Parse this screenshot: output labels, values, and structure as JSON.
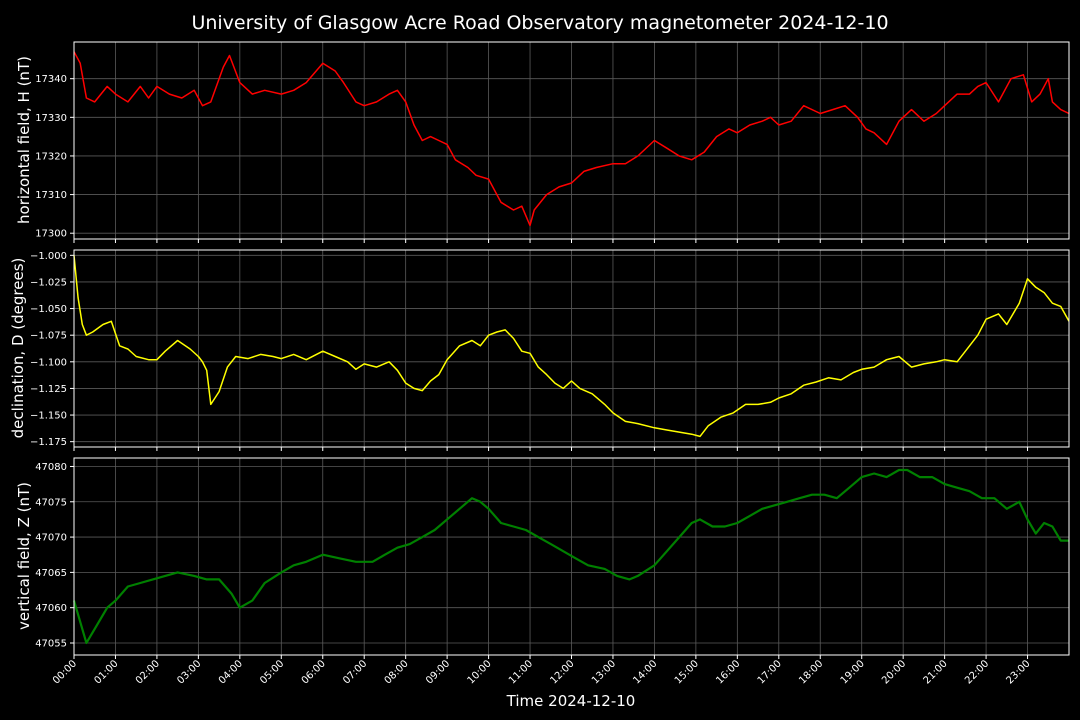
{
  "chart_data": {
    "type": "line",
    "title": "University of Glasgow Acre Road Observatory magnetometer 2024-12-10",
    "xlabel": "Time 2024-12-10",
    "x_unit": "hours",
    "xlim": [
      0,
      24
    ],
    "x_ticks": [
      "00:00",
      "01:00",
      "02:00",
      "03:00",
      "04:00",
      "05:00",
      "06:00",
      "07:00",
      "08:00",
      "09:00",
      "10:00",
      "11:00",
      "12:00",
      "13:00",
      "14:00",
      "15:00",
      "16:00",
      "17:00",
      "18:00",
      "19:00",
      "20:00",
      "21:00",
      "22:00",
      "23:00"
    ],
    "grid": true,
    "background": "#000000",
    "panels": [
      {
        "name": "H",
        "ylabel": "horizontal field, H (nT)",
        "color": "#ff0000",
        "ylim": [
          17298.5,
          17349.5
        ],
        "y_ticks": [
          17300,
          17310,
          17320,
          17330,
          17340
        ],
        "y_tick_labels": [
          "17300",
          "17310",
          "17320",
          "17330",
          "17340"
        ],
        "x": [
          0,
          0.15,
          0.3,
          0.5,
          0.8,
          1,
          1.3,
          1.6,
          1.8,
          2,
          2.3,
          2.6,
          2.9,
          3.1,
          3.3,
          3.6,
          3.75,
          4,
          4.3,
          4.6,
          5,
          5.3,
          5.6,
          6,
          6.3,
          6.5,
          6.8,
          7,
          7.3,
          7.6,
          7.8,
          8,
          8.2,
          8.4,
          8.6,
          8.8,
          9,
          9.2,
          9.5,
          9.7,
          10,
          10.3,
          10.6,
          10.8,
          11,
          11.1,
          11.4,
          11.7,
          12,
          12.3,
          12.6,
          13,
          13.3,
          13.6,
          14,
          14.3,
          14.6,
          14.9,
          15.2,
          15.5,
          15.8,
          16,
          16.3,
          16.6,
          16.8,
          17,
          17.3,
          17.6,
          18,
          18.3,
          18.6,
          18.9,
          19.1,
          19.3,
          19.6,
          19.9,
          20.2,
          20.5,
          20.8,
          21,
          21.3,
          21.6,
          21.8,
          22,
          22.3,
          22.6,
          22.9,
          23.1,
          23.3,
          23.5,
          23.6,
          23.8,
          24
        ],
        "values": [
          17347,
          17344,
          17335,
          17334,
          17338,
          17336,
          17334,
          17338,
          17335,
          17338,
          17336,
          17335,
          17337,
          17333,
          17334,
          17343,
          17346,
          17339,
          17336,
          17337,
          17336,
          17337,
          17339,
          17344,
          17342,
          17339,
          17334,
          17333,
          17334,
          17336,
          17337,
          17334,
          17328,
          17324,
          17325,
          17324,
          17323,
          17319,
          17317,
          17315,
          17314,
          17308,
          17306,
          17307,
          17302,
          17306,
          17310,
          17312,
          17313,
          17316,
          17317,
          17318,
          17318,
          17320,
          17324,
          17322,
          17320,
          17319,
          17321,
          17325,
          17327,
          17326,
          17328,
          17329,
          17330,
          17328,
          17329,
          17333,
          17331,
          17332,
          17333,
          17330,
          17327,
          17326,
          17323,
          17329,
          17332,
          17329,
          17331,
          17333,
          17336,
          17336,
          17338,
          17339,
          17334,
          17340,
          17341,
          17334,
          17336,
          17340,
          17334,
          17332,
          17331
        ]
      },
      {
        "name": "D",
        "ylabel": "declination, D (degrees)",
        "color": "#ffff00",
        "ylim": [
          -1.18,
          -0.995
        ],
        "y_ticks": [
          -1.175,
          -1.15,
          -1.125,
          -1.1,
          -1.075,
          -1.05,
          -1.025,
          -1.0
        ],
        "y_tick_labels": [
          "−1.175",
          "−1.150",
          "−1.125",
          "−1.100",
          "−1.075",
          "−1.050",
          "−1.025",
          "−1.000"
        ],
        "x": [
          0,
          0.1,
          0.2,
          0.3,
          0.45,
          0.7,
          0.9,
          1.1,
          1.3,
          1.5,
          1.8,
          2,
          2.2,
          2.5,
          2.8,
          3,
          3.1,
          3.2,
          3.3,
          3.5,
          3.7,
          3.9,
          4.2,
          4.5,
          4.8,
          5,
          5.3,
          5.6,
          6,
          6.3,
          6.6,
          6.8,
          7,
          7.3,
          7.6,
          7.8,
          8,
          8.2,
          8.4,
          8.6,
          8.8,
          9,
          9.3,
          9.6,
          9.8,
          10,
          10.2,
          10.4,
          10.6,
          10.8,
          11,
          11.2,
          11.4,
          11.6,
          11.8,
          12,
          12.2,
          12.5,
          12.8,
          13,
          13.3,
          13.6,
          14,
          14.3,
          14.6,
          14.9,
          15.1,
          15.3,
          15.6,
          15.9,
          16.2,
          16.5,
          16.8,
          17,
          17.3,
          17.6,
          17.9,
          18.2,
          18.5,
          18.8,
          19,
          19.3,
          19.6,
          19.9,
          20.2,
          20.5,
          20.8,
          21,
          21.3,
          21.5,
          21.8,
          22,
          22.3,
          22.5,
          22.8,
          23,
          23.2,
          23.4,
          23.6,
          23.8,
          24
        ],
        "values": [
          -1.0,
          -1.04,
          -1.065,
          -1.075,
          -1.072,
          -1.065,
          -1.062,
          -1.085,
          -1.088,
          -1.095,
          -1.098,
          -1.098,
          -1.09,
          -1.08,
          -1.088,
          -1.095,
          -1.1,
          -1.108,
          -1.14,
          -1.128,
          -1.105,
          -1.095,
          -1.097,
          -1.093,
          -1.095,
          -1.097,
          -1.093,
          -1.098,
          -1.09,
          -1.095,
          -1.1,
          -1.107,
          -1.102,
          -1.105,
          -1.1,
          -1.108,
          -1.12,
          -1.125,
          -1.127,
          -1.118,
          -1.112,
          -1.098,
          -1.085,
          -1.08,
          -1.085,
          -1.075,
          -1.072,
          -1.07,
          -1.078,
          -1.09,
          -1.092,
          -1.105,
          -1.112,
          -1.12,
          -1.125,
          -1.118,
          -1.125,
          -1.13,
          -1.14,
          -1.148,
          -1.156,
          -1.158,
          -1.162,
          -1.164,
          -1.166,
          -1.168,
          -1.17,
          -1.16,
          -1.152,
          -1.148,
          -1.14,
          -1.14,
          -1.138,
          -1.134,
          -1.13,
          -1.122,
          -1.119,
          -1.115,
          -1.117,
          -1.11,
          -1.107,
          -1.105,
          -1.098,
          -1.095,
          -1.105,
          -1.102,
          -1.1,
          -1.098,
          -1.1,
          -1.09,
          -1.075,
          -1.06,
          -1.055,
          -1.065,
          -1.045,
          -1.022,
          -1.03,
          -1.035,
          -1.045,
          -1.048,
          -1.062
        ]
      },
      {
        "name": "Z",
        "ylabel": "vertical field, Z (nT)",
        "color": "#008000",
        "ylim": [
          47053.3,
          47081.2
        ],
        "y_ticks": [
          47055,
          47060,
          47065,
          47070,
          47075,
          47080
        ],
        "y_tick_labels": [
          "47055",
          "47060",
          "47065",
          "47070",
          "47075",
          "47080"
        ],
        "x": [
          0,
          0.15,
          0.3,
          0.5,
          0.8,
          1,
          1.3,
          1.6,
          1.9,
          2.2,
          2.5,
          2.9,
          3.2,
          3.5,
          3.8,
          4,
          4.3,
          4.6,
          5,
          5.3,
          5.6,
          6,
          6.4,
          6.8,
          7.2,
          7.5,
          7.8,
          8.1,
          8.4,
          8.7,
          9,
          9.3,
          9.6,
          9.8,
          10,
          10.3,
          10.6,
          10.9,
          11.2,
          11.5,
          11.8,
          12.1,
          12.4,
          12.8,
          13.1,
          13.4,
          13.6,
          14,
          14.3,
          14.6,
          14.9,
          15.1,
          15.4,
          15.7,
          16,
          16.3,
          16.6,
          16.9,
          17.2,
          17.5,
          17.8,
          18.1,
          18.4,
          18.7,
          19,
          19.3,
          19.6,
          19.9,
          20.1,
          20.4,
          20.7,
          21,
          21.3,
          21.6,
          21.9,
          22.2,
          22.5,
          22.8,
          23,
          23.2,
          23.4,
          23.6,
          23.8,
          24
        ],
        "values": [
          47061,
          47058,
          47055,
          47057,
          47060,
          47061,
          47063,
          47063.5,
          47064,
          47064.5,
          47065,
          47064.5,
          47064,
          47064,
          47062,
          47060,
          47061,
          47063.5,
          47065,
          47066,
          47066.5,
          47067.5,
          47067,
          47066.5,
          47066.5,
          47067.5,
          47068.5,
          47069,
          47070,
          47071,
          47072.5,
          47074,
          47075.5,
          47075,
          47074,
          47072,
          47071.5,
          47071,
          47070,
          47069,
          47068,
          47067,
          47066,
          47065.5,
          47064.5,
          47064,
          47064.5,
          47066,
          47068,
          47070,
          47072,
          47072.5,
          47071.5,
          47071.5,
          47072,
          47073,
          47074,
          47074.5,
          47075,
          47075.5,
          47076,
          47076,
          47075.5,
          47077,
          47078.5,
          47079,
          47078.5,
          47079.5,
          47079.5,
          47078.5,
          47078.5,
          47077.5,
          47077,
          47076.5,
          47075.5,
          47075.5,
          47074,
          47075,
          47072.5,
          47070.5,
          47072,
          47071.5,
          47069.5,
          47069.5
        ]
      }
    ]
  }
}
